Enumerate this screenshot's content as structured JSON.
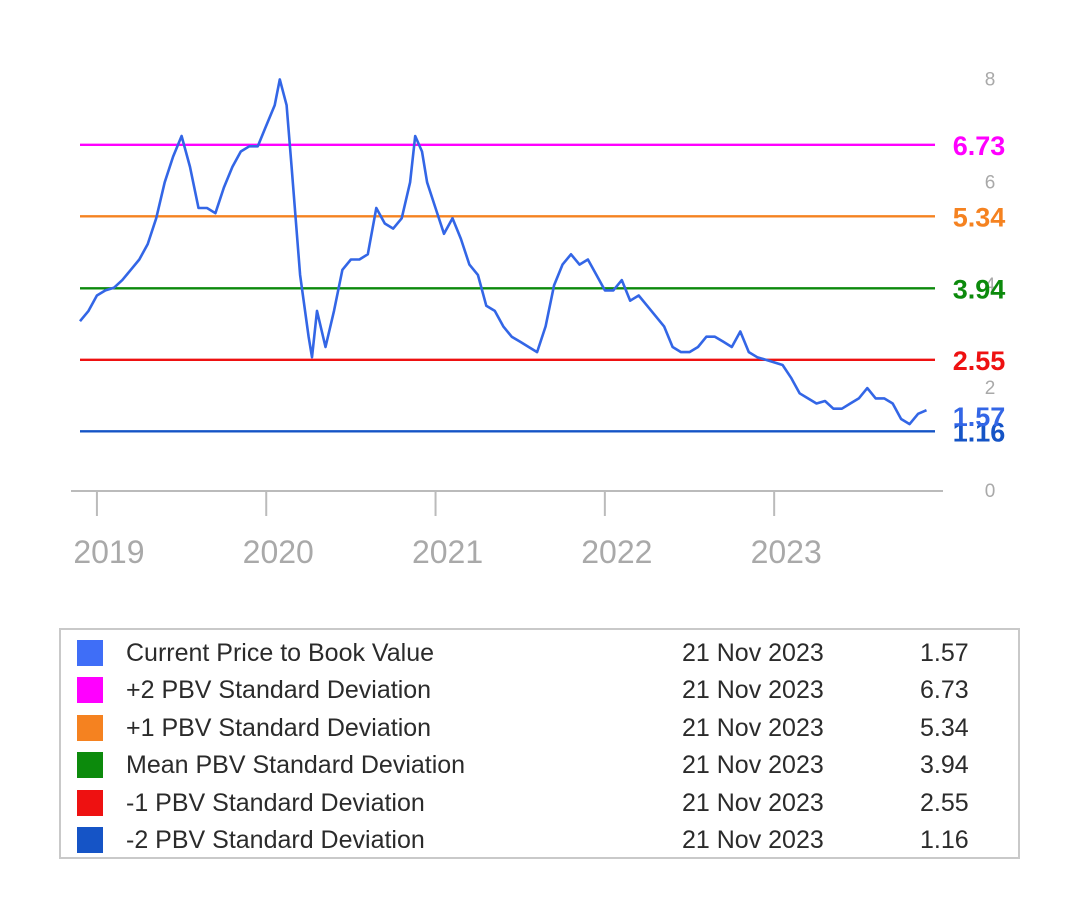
{
  "chart_data": {
    "type": "line",
    "title": "",
    "xlabel": "",
    "ylabel": "",
    "xlim": [
      2018.9,
      2023.95
    ],
    "ylim": [
      0,
      8.3
    ],
    "y_tick_labels": [
      {
        "value": 8,
        "label": "8"
      },
      {
        "value": 6,
        "label": "6"
      },
      {
        "value": 4,
        "label": "4"
      },
      {
        "value": 2,
        "label": "2"
      },
      {
        "value": 0,
        "label": "0"
      }
    ],
    "x_tick_labels": [
      {
        "value": 2019,
        "label": "2019"
      },
      {
        "value": 2020,
        "label": "2020"
      },
      {
        "value": 2021,
        "label": "2021"
      },
      {
        "value": 2022,
        "label": "2022"
      },
      {
        "value": 2023,
        "label": "2023"
      }
    ],
    "grid": false,
    "series": [
      {
        "name": "Current Price to Book Value",
        "color": "#3366e6",
        "x": [
          2018.9,
          2018.95,
          2019.0,
          2019.05,
          2019.1,
          2019.15,
          2019.2,
          2019.25,
          2019.3,
          2019.35,
          2019.4,
          2019.45,
          2019.5,
          2019.55,
          2019.6,
          2019.65,
          2019.7,
          2019.75,
          2019.8,
          2019.85,
          2019.9,
          2019.95,
          2020.0,
          2020.05,
          2020.08,
          2020.12,
          2020.15,
          2020.2,
          2020.25,
          2020.27,
          2020.3,
          2020.35,
          2020.4,
          2020.45,
          2020.5,
          2020.55,
          2020.6,
          2020.65,
          2020.7,
          2020.75,
          2020.8,
          2020.85,
          2020.88,
          2020.92,
          2020.95,
          2021.0,
          2021.05,
          2021.1,
          2021.15,
          2021.2,
          2021.25,
          2021.3,
          2021.35,
          2021.4,
          2021.45,
          2021.5,
          2021.55,
          2021.6,
          2021.65,
          2021.7,
          2021.75,
          2021.8,
          2021.85,
          2021.9,
          2021.95,
          2022.0,
          2022.05,
          2022.1,
          2022.15,
          2022.2,
          2022.25,
          2022.3,
          2022.35,
          2022.4,
          2022.45,
          2022.5,
          2022.55,
          2022.6,
          2022.65,
          2022.7,
          2022.75,
          2022.8,
          2022.85,
          2022.9,
          2022.95,
          2023.0,
          2023.05,
          2023.1,
          2023.15,
          2023.2,
          2023.25,
          2023.3,
          2023.35,
          2023.4,
          2023.45,
          2023.5,
          2023.55,
          2023.6,
          2023.65,
          2023.7,
          2023.75,
          2023.8,
          2023.85,
          2023.9
        ],
        "values": [
          3.3,
          3.5,
          3.8,
          3.9,
          3.95,
          4.1,
          4.3,
          4.5,
          4.8,
          5.3,
          6.0,
          6.5,
          6.9,
          6.3,
          5.5,
          5.5,
          5.4,
          5.9,
          6.3,
          6.6,
          6.7,
          6.7,
          7.1,
          7.5,
          8.0,
          7.5,
          6.3,
          4.2,
          3.0,
          2.6,
          3.5,
          2.8,
          3.5,
          4.3,
          4.5,
          4.5,
          4.6,
          5.5,
          5.2,
          5.1,
          5.3,
          6.0,
          6.9,
          6.6,
          6.0,
          5.5,
          5.0,
          5.3,
          4.9,
          4.4,
          4.2,
          3.6,
          3.5,
          3.2,
          3.0,
          2.9,
          2.8,
          2.7,
          3.2,
          4.0,
          4.4,
          4.6,
          4.4,
          4.5,
          4.2,
          3.9,
          3.9,
          4.1,
          3.7,
          3.8,
          3.6,
          3.4,
          3.2,
          2.8,
          2.7,
          2.7,
          2.8,
          3.0,
          3.0,
          2.9,
          2.8,
          3.1,
          2.7,
          2.6,
          2.55,
          2.5,
          2.45,
          2.2,
          1.9,
          1.8,
          1.7,
          1.75,
          1.6,
          1.6,
          1.7,
          1.8,
          2.0,
          1.8,
          1.8,
          1.7,
          1.4,
          1.3,
          1.5,
          1.57
        ]
      }
    ],
    "reference_lines": [
      {
        "name": "+2 PBV Standard Deviation",
        "value": 6.73,
        "label": "6.73",
        "color": "#ff00ff"
      },
      {
        "name": "+1 PBV Standard Deviation",
        "value": 5.34,
        "label": "5.34",
        "color": "#f58220"
      },
      {
        "name": "Mean PBV Standard Deviation",
        "value": 3.94,
        "label": "3.94",
        "color": "#0c8a0c"
      },
      {
        "name": "-1 PBV Standard Deviation",
        "value": 2.55,
        "label": "2.55",
        "color": "#ee1111"
      },
      {
        "name": "-2 PBV Standard Deviation",
        "value": 1.16,
        "label": "1.16",
        "color": "#1554c6"
      }
    ],
    "current_value_label": {
      "value": 1.57,
      "label": "1.57",
      "color": "#3366e6"
    }
  },
  "legend": {
    "rows": [
      {
        "color": "#3f6ef7",
        "name": "Current Price to Book Value",
        "date": "21 Nov 2023",
        "value": "1.57"
      },
      {
        "color": "#ff00ff",
        "name": "+2 PBV Standard Deviation",
        "date": "21 Nov 2023",
        "value": "6.73"
      },
      {
        "color": "#f58220",
        "name": "+1 PBV Standard Deviation",
        "date": "21 Nov 2023",
        "value": "5.34"
      },
      {
        "color": "#0c8a0c",
        "name": "Mean PBV Standard Deviation",
        "date": "21 Nov 2023",
        "value": "3.94"
      },
      {
        "color": "#ee1111",
        "name": "-1 PBV Standard Deviation",
        "date": "21 Nov 2023",
        "value": "2.55"
      },
      {
        "color": "#1554c6",
        "name": "-2 PBV Standard Deviation",
        "date": "21 Nov 2023",
        "value": "1.16"
      }
    ]
  }
}
